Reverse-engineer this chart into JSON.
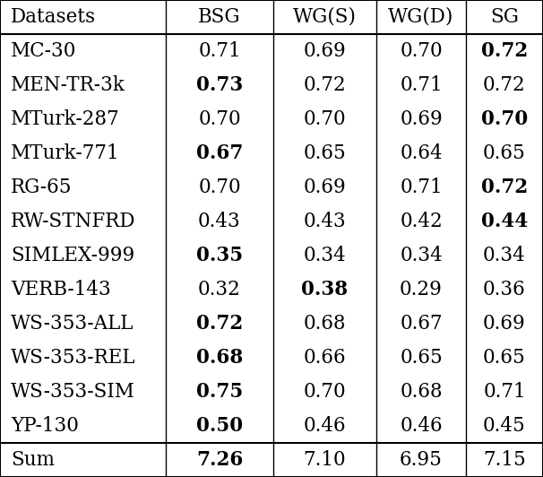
{
  "headers": [
    "Datasets",
    "BSG",
    "WG(S)",
    "WG(D)",
    "SG"
  ],
  "rows": [
    [
      "MC-30",
      "0.71",
      "0.69",
      "0.70",
      "0.72"
    ],
    [
      "MEN-TR-3k",
      "0.73",
      "0.72",
      "0.71",
      "0.72"
    ],
    [
      "MTurk-287",
      "0.70",
      "0.70",
      "0.69",
      "0.70"
    ],
    [
      "MTurk-771",
      "0.67",
      "0.65",
      "0.64",
      "0.65"
    ],
    [
      "RG-65",
      "0.70",
      "0.69",
      "0.71",
      "0.72"
    ],
    [
      "RW-STNFRD",
      "0.43",
      "0.43",
      "0.42",
      "0.44"
    ],
    [
      "SIMLEX-999",
      "0.35",
      "0.34",
      "0.34",
      "0.34"
    ],
    [
      "VERB-143",
      "0.32",
      "0.38",
      "0.29",
      "0.36"
    ],
    [
      "WS-353-ALL",
      "0.72",
      "0.68",
      "0.67",
      "0.69"
    ],
    [
      "WS-353-REL",
      "0.68",
      "0.66",
      "0.65",
      "0.65"
    ],
    [
      "WS-353-SIM",
      "0.75",
      "0.70",
      "0.68",
      "0.71"
    ],
    [
      "YP-130",
      "0.50",
      "0.46",
      "0.46",
      "0.45"
    ]
  ],
  "sum_row": [
    "Sum",
    "7.26",
    "7.10",
    "6.95",
    "7.15"
  ],
  "bold": {
    "MC-30": [
      false,
      false,
      false,
      true
    ],
    "MEN-TR-3k": [
      true,
      false,
      false,
      false
    ],
    "MTurk-287": [
      false,
      false,
      false,
      true
    ],
    "MTurk-771": [
      true,
      false,
      false,
      false
    ],
    "RG-65": [
      false,
      false,
      false,
      true
    ],
    "RW-STNFRD": [
      false,
      false,
      false,
      true
    ],
    "SIMLEX-999": [
      true,
      false,
      false,
      false
    ],
    "VERB-143": [
      false,
      true,
      false,
      false
    ],
    "WS-353-ALL": [
      true,
      false,
      false,
      false
    ],
    "WS-353-REL": [
      true,
      false,
      false,
      false
    ],
    "WS-353-SIM": [
      true,
      false,
      false,
      false
    ],
    "YP-130": [
      true,
      false,
      false,
      false
    ]
  },
  "sum_bold": [
    true,
    false,
    false,
    false
  ],
  "figsize": [
    6.06,
    5.32
  ],
  "dpi": 100,
  "fontsize": 15.5,
  "bg_color": "white",
  "line_color": "black"
}
